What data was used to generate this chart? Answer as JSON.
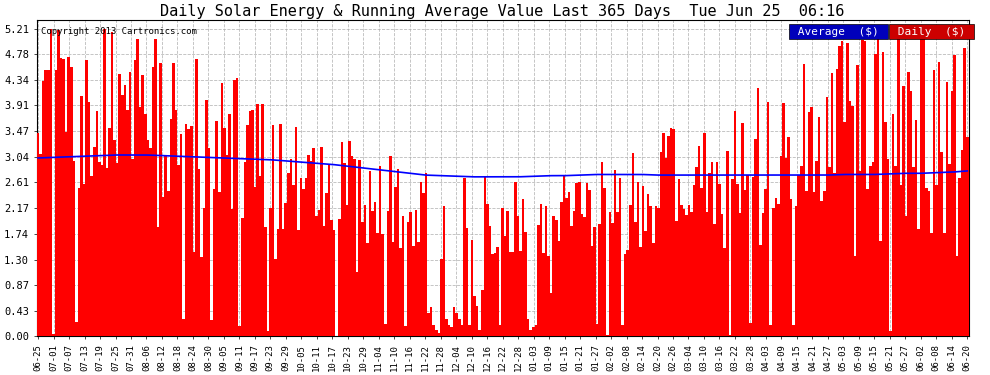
{
  "title": "Daily Solar Energy & Running Average Value Last 365 Days  Tue Jun 25  06:16",
  "copyright": "Copyright 2013 Cartronics.com",
  "ylabel_values": [
    0.0,
    0.43,
    0.87,
    1.3,
    1.74,
    2.17,
    2.61,
    3.04,
    3.47,
    3.91,
    4.34,
    4.78,
    5.21
  ],
  "ylim": [
    0.0,
    5.35
  ],
  "bar_color": "#FF0000",
  "avg_color": "#0000FF",
  "bg_color": "#FFFFFF",
  "grid_color": "#AAAAAA",
  "title_fontsize": 11,
  "legend_avg_color": "#0000BB",
  "legend_daily_color": "#CC0000",
  "n_days": 365,
  "x_tick_labels": [
    "06-25",
    "07-01",
    "07-07",
    "07-13",
    "07-19",
    "07-25",
    "07-31",
    "08-06",
    "08-12",
    "08-18",
    "08-24",
    "08-30",
    "09-05",
    "09-11",
    "09-17",
    "09-23",
    "09-29",
    "10-05",
    "10-11",
    "10-17",
    "10-23",
    "10-29",
    "11-04",
    "11-10",
    "11-16",
    "11-22",
    "11-28",
    "12-04",
    "12-10",
    "12-16",
    "12-22",
    "12-28",
    "01-03",
    "01-09",
    "01-15",
    "01-21",
    "01-27",
    "02-02",
    "02-08",
    "02-14",
    "02-20",
    "02-26",
    "03-04",
    "03-10",
    "03-16",
    "03-22",
    "03-28",
    "04-03",
    "04-09",
    "04-15",
    "04-21",
    "04-27",
    "05-03",
    "05-09",
    "05-15",
    "05-21",
    "05-27",
    "06-02",
    "06-08",
    "06-14",
    "06-20"
  ],
  "avg_line_y": [
    3.02,
    3.03,
    3.04,
    3.05,
    3.06,
    3.07,
    3.07,
    3.07,
    3.06,
    3.05,
    3.04,
    3.03,
    3.02,
    3.01,
    3.0,
    2.99,
    2.97,
    2.95,
    2.93,
    2.91,
    2.88,
    2.85,
    2.82,
    2.79,
    2.76,
    2.73,
    2.72,
    2.71,
    2.7,
    2.7,
    2.7,
    2.7,
    2.71,
    2.72,
    2.72,
    2.73,
    2.74,
    2.74,
    2.74,
    2.74,
    2.73,
    2.73,
    2.73,
    2.73,
    2.73,
    2.73,
    2.73,
    2.73,
    2.73,
    2.73,
    2.73,
    2.73,
    2.74,
    2.74,
    2.74,
    2.75,
    2.76,
    2.76,
    2.77,
    2.78,
    2.8
  ]
}
